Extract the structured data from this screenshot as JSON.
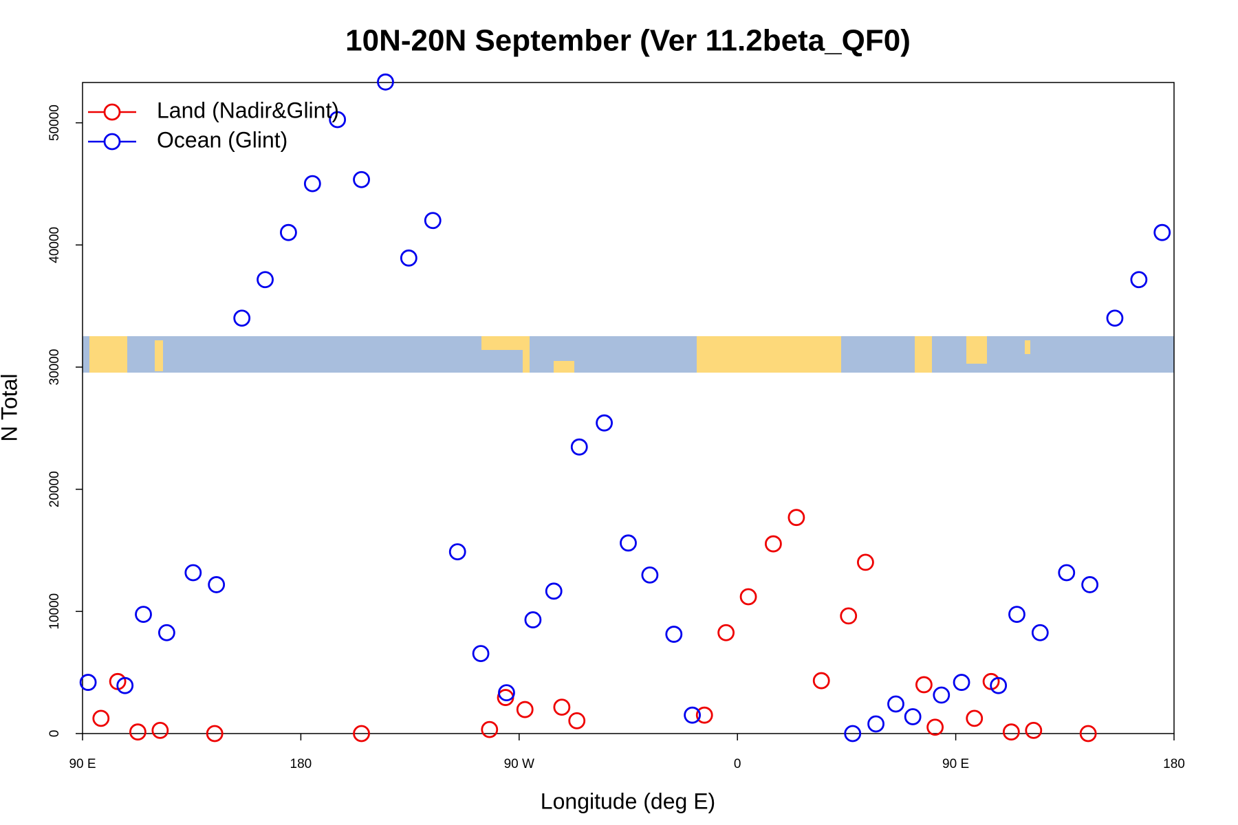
{
  "chart_data": {
    "type": "scatter",
    "title": "10N-20N September (Ver 11.2beta_QF0)",
    "x_label": "Longitude (deg E)",
    "y_label": "N Total",
    "xlim": [
      90,
      540
    ],
    "ylim": [
      0,
      53300
    ],
    "xticks": [
      {
        "value": 90,
        "label": "90 E"
      },
      180,
      {
        "value": 270,
        "label": "90 W"
      },
      {
        "value": 360,
        "label": "0"
      },
      {
        "value": 450,
        "label": "90 E"
      },
      {
        "value": 540,
        "label": "180"
      }
    ],
    "yticks": [
      0,
      10000,
      20000,
      30000,
      40000,
      50000
    ],
    "legend": "top-left",
    "series": [
      {
        "name": "Land (Nadir&Glint)",
        "color": "#ee0000",
        "x": [
          97.6,
          104.5,
          112.8,
          122,
          144.5,
          205,
          257.8,
          264.4,
          272.4,
          287.6,
          293.8,
          346.4,
          355.3,
          364.5,
          374.8,
          384.3,
          394.6,
          405.8,
          412.8,
          436.9,
          441.5,
          457.7,
          464.6,
          472.9,
          482.1,
          504.6
        ],
        "values": [
          1245,
          4260,
          130,
          260,
          0,
          0,
          330,
          2950,
          1966,
          2160,
          1050,
          1510,
          8260,
          11200,
          15530,
          17690,
          4330,
          9630,
          14020,
          4000,
          520,
          1245,
          4260,
          130,
          260,
          0
        ]
      },
      {
        "name": "Ocean (Glint)",
        "color": "#0000ee",
        "x": [
          92.3,
          107.5,
          115.1,
          124.7,
          135.6,
          145.2,
          155.7,
          165.3,
          174.9,
          184.8,
          195.1,
          205,
          214.9,
          224.5,
          234.4,
          244.6,
          254.2,
          264.8,
          275.7,
          284.3,
          294.8,
          305.1,
          315,
          323.9,
          333.8,
          341.4,
          407.5,
          417.1,
          425.3,
          432.3,
          444.1,
          452.4,
          467.6,
          475.2,
          484.8,
          495.7,
          505.3,
          515.6,
          525.5,
          535.1
        ],
        "values": [
          4190,
          3930,
          9760,
          8260,
          13170,
          12190,
          34010,
          37160,
          41020,
          45020,
          50260,
          45350,
          53340,
          38930,
          42000,
          14880,
          6550,
          3340,
          9310,
          11660,
          23460,
          25430,
          15600,
          12980,
          8130,
          1510,
          0,
          790,
          2420,
          1380,
          3150,
          4190,
          3930,
          9760,
          8260,
          13170,
          12190,
          34010,
          37160,
          41020
        ]
      }
    ]
  }
}
